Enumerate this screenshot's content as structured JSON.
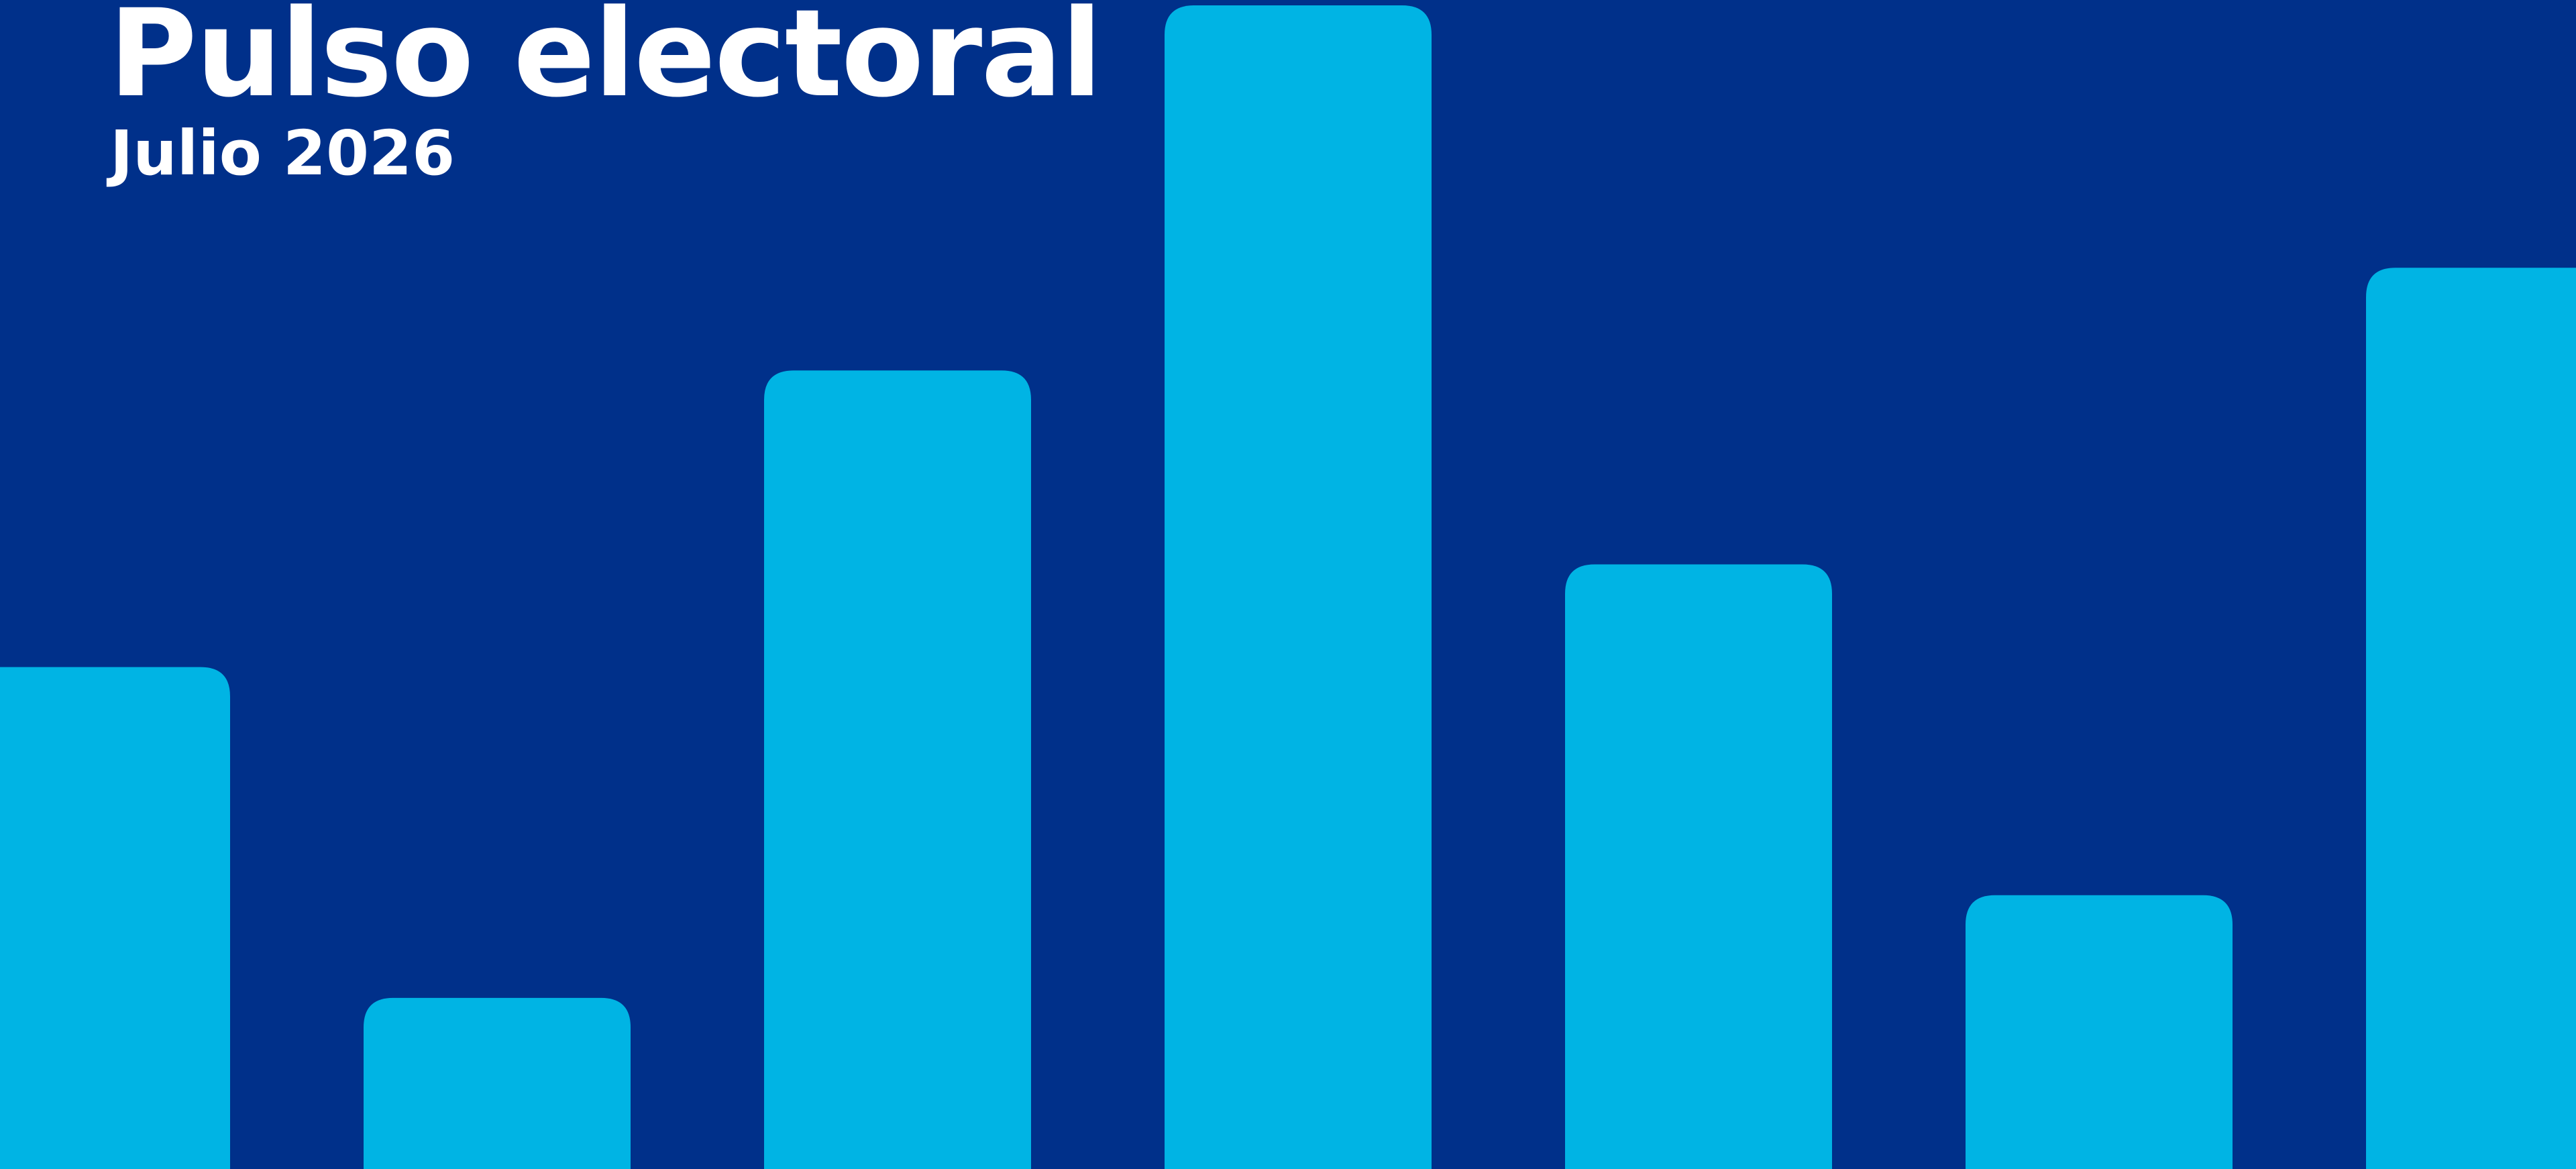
{
  "header": {
    "title": "Pulso electoral",
    "subtitle": "Julio 2026"
  },
  "colors": {
    "background": "#00308A",
    "bar": "#00B4E4",
    "text": "#FFFFFF"
  },
  "chart_data": {
    "type": "bar",
    "values": [
      44,
      15,
      70,
      102,
      53,
      24,
      79
    ],
    "ylim": [
      0,
      102
    ],
    "grid": false
  }
}
